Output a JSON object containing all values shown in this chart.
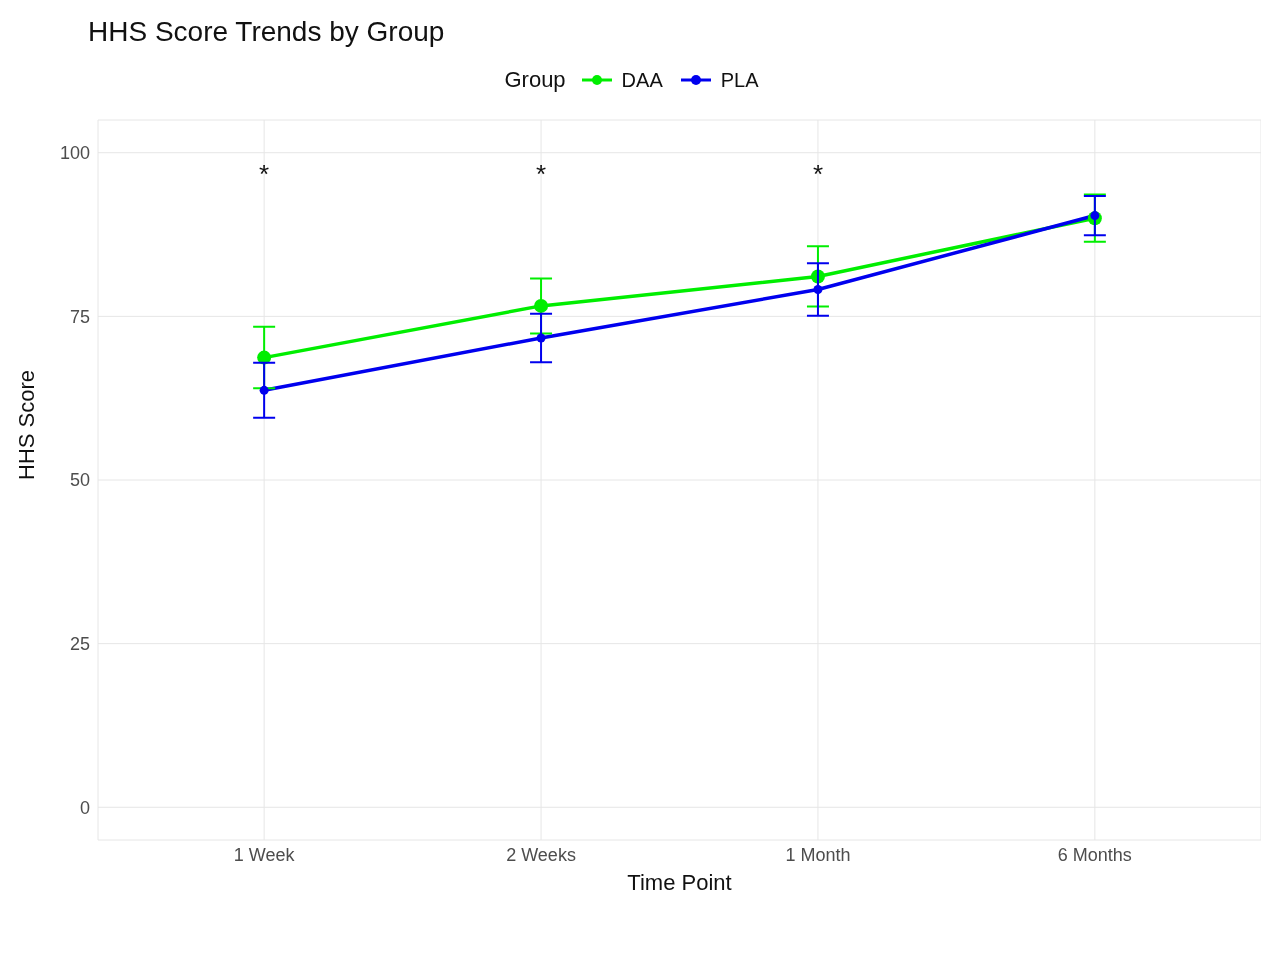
{
  "chart_data": {
    "type": "line",
    "title": "HHS Score Trends by Group",
    "xlabel": "Time Point",
    "ylabel": "HHS Score",
    "legend_title": "Group",
    "legend": "top",
    "grid": true,
    "marker": "circle",
    "line_style": "solid",
    "categories": [
      "1 Week",
      "2 Weeks",
      "1 Month",
      "6 Months"
    ],
    "ylim": [
      -5,
      105
    ],
    "yticks": [
      0,
      25,
      50,
      75,
      100
    ],
    "series": [
      {
        "name": "DAA",
        "color": "#00ee00",
        "values": [
          68.7,
          76.6,
          81.1,
          90.0
        ],
        "errors": [
          4.7,
          4.2,
          4.6,
          3.6
        ]
      },
      {
        "name": "PLA",
        "color": "#0000ee",
        "values": [
          63.7,
          71.7,
          79.1,
          90.4
        ],
        "errors": [
          4.2,
          3.7,
          4.0,
          3.0
        ]
      }
    ],
    "annotations": [
      "*",
      "*",
      "*"
    ]
  }
}
